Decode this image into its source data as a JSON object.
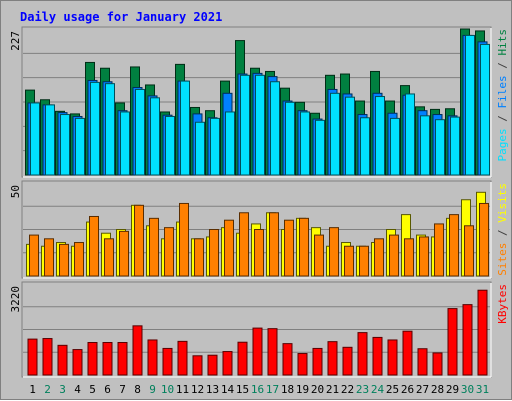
{
  "chart_data": {
    "type": "bar",
    "title": "Daily usage for January 2021",
    "categories": [
      "1",
      "2",
      "3",
      "4",
      "5",
      "6",
      "7",
      "8",
      "9",
      "10",
      "11",
      "12",
      "13",
      "14",
      "15",
      "16",
      "17",
      "18",
      "19",
      "20",
      "21",
      "22",
      "23",
      "24",
      "25",
      "26",
      "27",
      "28",
      "29",
      "30",
      "31"
    ],
    "weekend_days": [
      "2",
      "3",
      "9",
      "10",
      "16",
      "17",
      "23",
      "24",
      "30",
      "31"
    ],
    "panels": [
      {
        "name": "hits-files-pages",
        "ymax_label": "227",
        "ymax": 227,
        "legend": [
          {
            "text": "Pages",
            "color": "#00e0ff"
          },
          {
            "text": " / ",
            "color": "#404040"
          },
          {
            "text": "Files",
            "color": "#0080ff"
          },
          {
            "text": " / ",
            "color": "#404040"
          },
          {
            "text": "Hits",
            "color": "#008040"
          }
        ],
        "series": [
          {
            "name": "Hits",
            "color": "#008040",
            "values": [
              132,
              117,
              99,
              95,
              175,
              166,
              112,
              168,
              140,
              98,
              172,
              105,
              100,
              146,
              209,
              166,
              161,
              135,
              113,
              96,
              155,
              157,
              115,
              161,
              115,
              139,
              106,
              102,
              103,
              227,
              224
            ]
          },
          {
            "name": "Files",
            "color": "#0080ff",
            "values": [
              112,
              109,
              97,
              91,
              147,
              145,
              100,
              136,
              123,
              93,
              146,
              95,
              89,
              127,
              157,
              158,
              153,
              115,
              100,
              87,
              133,
              126,
              94,
              127,
              96,
              124,
              100,
              94,
              92,
              217,
              207
            ]
          },
          {
            "name": "Pages",
            "color": "#00e0ff",
            "values": [
              112,
              109,
              94,
              88,
              144,
              142,
              98,
              133,
              120,
              91,
              146,
              82,
              88,
              98,
              155,
              155,
              145,
              113,
              98,
              85,
              127,
              121,
              89,
              122,
              88,
              126,
              92,
              86,
              90,
              217,
              203
            ]
          }
        ]
      },
      {
        "name": "visits-sites",
        "ymax_label": "50",
        "ymax": 50,
        "legend": [
          {
            "text": "Sites",
            "color": "#ff8000"
          },
          {
            "text": " / ",
            "color": "#404040"
          },
          {
            "text": "Visits",
            "color": "#ffff00"
          }
        ],
        "series": [
          {
            "name": "Visits",
            "color": "#ffff00",
            "values": [
              17,
              16,
              18,
              16,
              29,
              23,
              25,
              38,
              27,
              20,
              29,
              20,
              21,
              26,
              23,
              28,
              34,
              25,
              31,
              26,
              16,
              18,
              16,
              18,
              25,
              33,
              22,
              21,
              31,
              41,
              45
            ]
          },
          {
            "name": "Sites",
            "color": "#ff8000",
            "values": [
              22,
              20,
              17,
              18,
              32,
              20,
              24,
              38,
              31,
              26,
              39,
              20,
              25,
              30,
              34,
              25,
              34,
              30,
              31,
              22,
              26,
              16,
              16,
              20,
              22,
              20,
              21,
              28,
              33,
              27,
              39
            ]
          }
        ]
      },
      {
        "name": "kbytes",
        "ymax_label": "3220",
        "ymax": 3220,
        "legend": [
          {
            "text": "KBytes",
            "color": "#ff0000"
          }
        ],
        "series": [
          {
            "name": "KBytes",
            "color": "#ff0000",
            "values": [
              1270,
              1290,
              1050,
              900,
              1150,
              1150,
              1150,
              1740,
              1240,
              940,
              1190,
              680,
              700,
              830,
              1160,
              1660,
              1640,
              1110,
              760,
              940,
              1180,
              980,
              1500,
              1330,
              1240,
              1550,
              930,
              780,
              2350,
              2490,
              3000
            ]
          }
        ]
      }
    ],
    "colors": {
      "background": "#c0c0c0",
      "grid": "#808080",
      "title": "#0000ff",
      "weekday_label": "#000000",
      "weekend_label": "#00805c"
    }
  }
}
